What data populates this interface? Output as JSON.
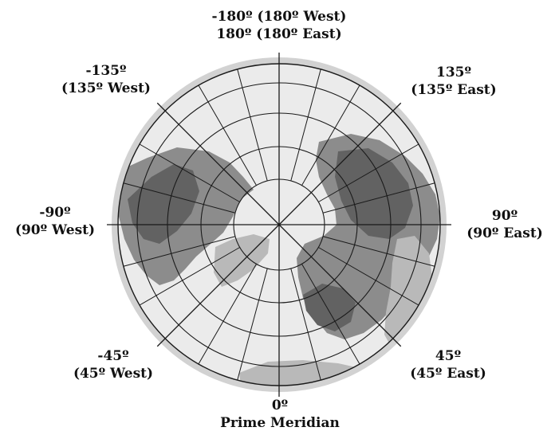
{
  "colors": {
    "ocean": "#ebebeb",
    "rim": "#d2d2d2",
    "land_light": "#b9b9b9",
    "land_mid": "#8c8c8c",
    "land_dark": "#626262",
    "grid": "#1a1a1a",
    "label": "#111111"
  },
  "map": {
    "projection": "north-polar azimuthal",
    "meridian_step_degrees": 15,
    "labels": {
      "top_line1": "-180º (180º West)",
      "top_line2": "180º (180º East)",
      "nw_line1": "-135º",
      "nw_line2": "(135º West)",
      "ne_line1": "135º",
      "ne_line2": "(135º East)",
      "w_line1": "-90º",
      "w_line2": "(90º West)",
      "e_line1": "90º",
      "e_line2": "(90º East)",
      "sw_line1": "-45º",
      "sw_line2": "(45º West)",
      "se_line1": "45º",
      "se_line2": "(45º East)",
      "bottom_line1": "0º",
      "bottom_line2": "Prime Meridian"
    }
  }
}
